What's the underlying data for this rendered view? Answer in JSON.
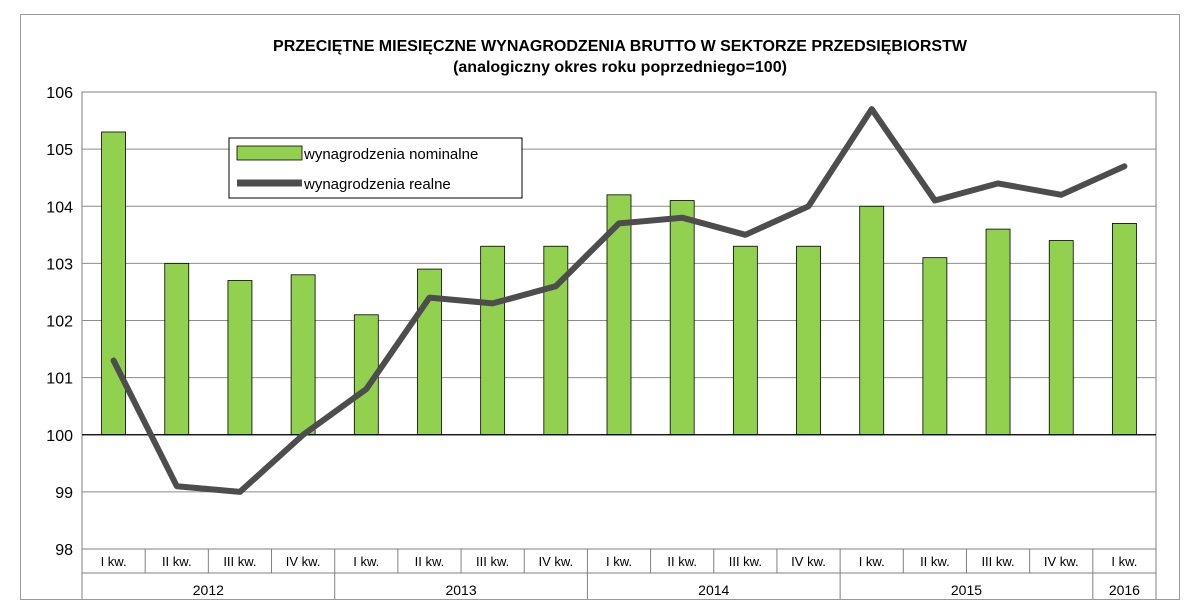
{
  "chart_data": {
    "type": "bar",
    "title": "PRZECIĘTNE MIESIĘCZNE WYNAGRODZENIA BRUTTO W SEKTORZE PRZEDSIĘBIORSTW",
    "subtitle": "(analogiczny okres  roku poprzedniego=100)",
    "xlabel": "",
    "ylabel": "",
    "ylim": [
      98,
      106
    ],
    "yticks": [
      "98",
      "99",
      "100",
      "101",
      "102",
      "103",
      "104",
      "105",
      "106"
    ],
    "grid": true,
    "legend_position": "top-left",
    "bar_baseline": 100,
    "categories": [
      "I kw.",
      "II kw.",
      "III kw.",
      "IV kw.",
      "I kw.",
      "II kw.",
      "III kw.",
      "IV kw.",
      "I kw.",
      "II kw.",
      "III kw.",
      "IV kw.",
      "I kw.",
      "II kw.",
      "III kw.",
      "IV kw.",
      "I kw."
    ],
    "groups": [
      {
        "label": "2012",
        "count": 4
      },
      {
        "label": "2013",
        "count": 4
      },
      {
        "label": "2014",
        "count": 4
      },
      {
        "label": "2015",
        "count": 4
      },
      {
        "label": "2016",
        "count": 1
      }
    ],
    "series": [
      {
        "name": "wynagrodzenia nominalne",
        "type": "bar",
        "color": "#92d050",
        "values": [
          105.3,
          103.0,
          102.7,
          102.8,
          102.1,
          102.9,
          103.3,
          103.3,
          104.2,
          104.1,
          103.3,
          103.3,
          104.0,
          103.1,
          103.6,
          103.4,
          103.7
        ]
      },
      {
        "name": "wynagrodzenia realne",
        "type": "line",
        "color": "#4d4d4d",
        "values": [
          101.3,
          99.1,
          99.0,
          100.0,
          100.8,
          102.4,
          102.3,
          102.6,
          103.7,
          103.8,
          103.5,
          104.0,
          105.7,
          104.1,
          104.4,
          104.2,
          104.7
        ]
      }
    ]
  }
}
